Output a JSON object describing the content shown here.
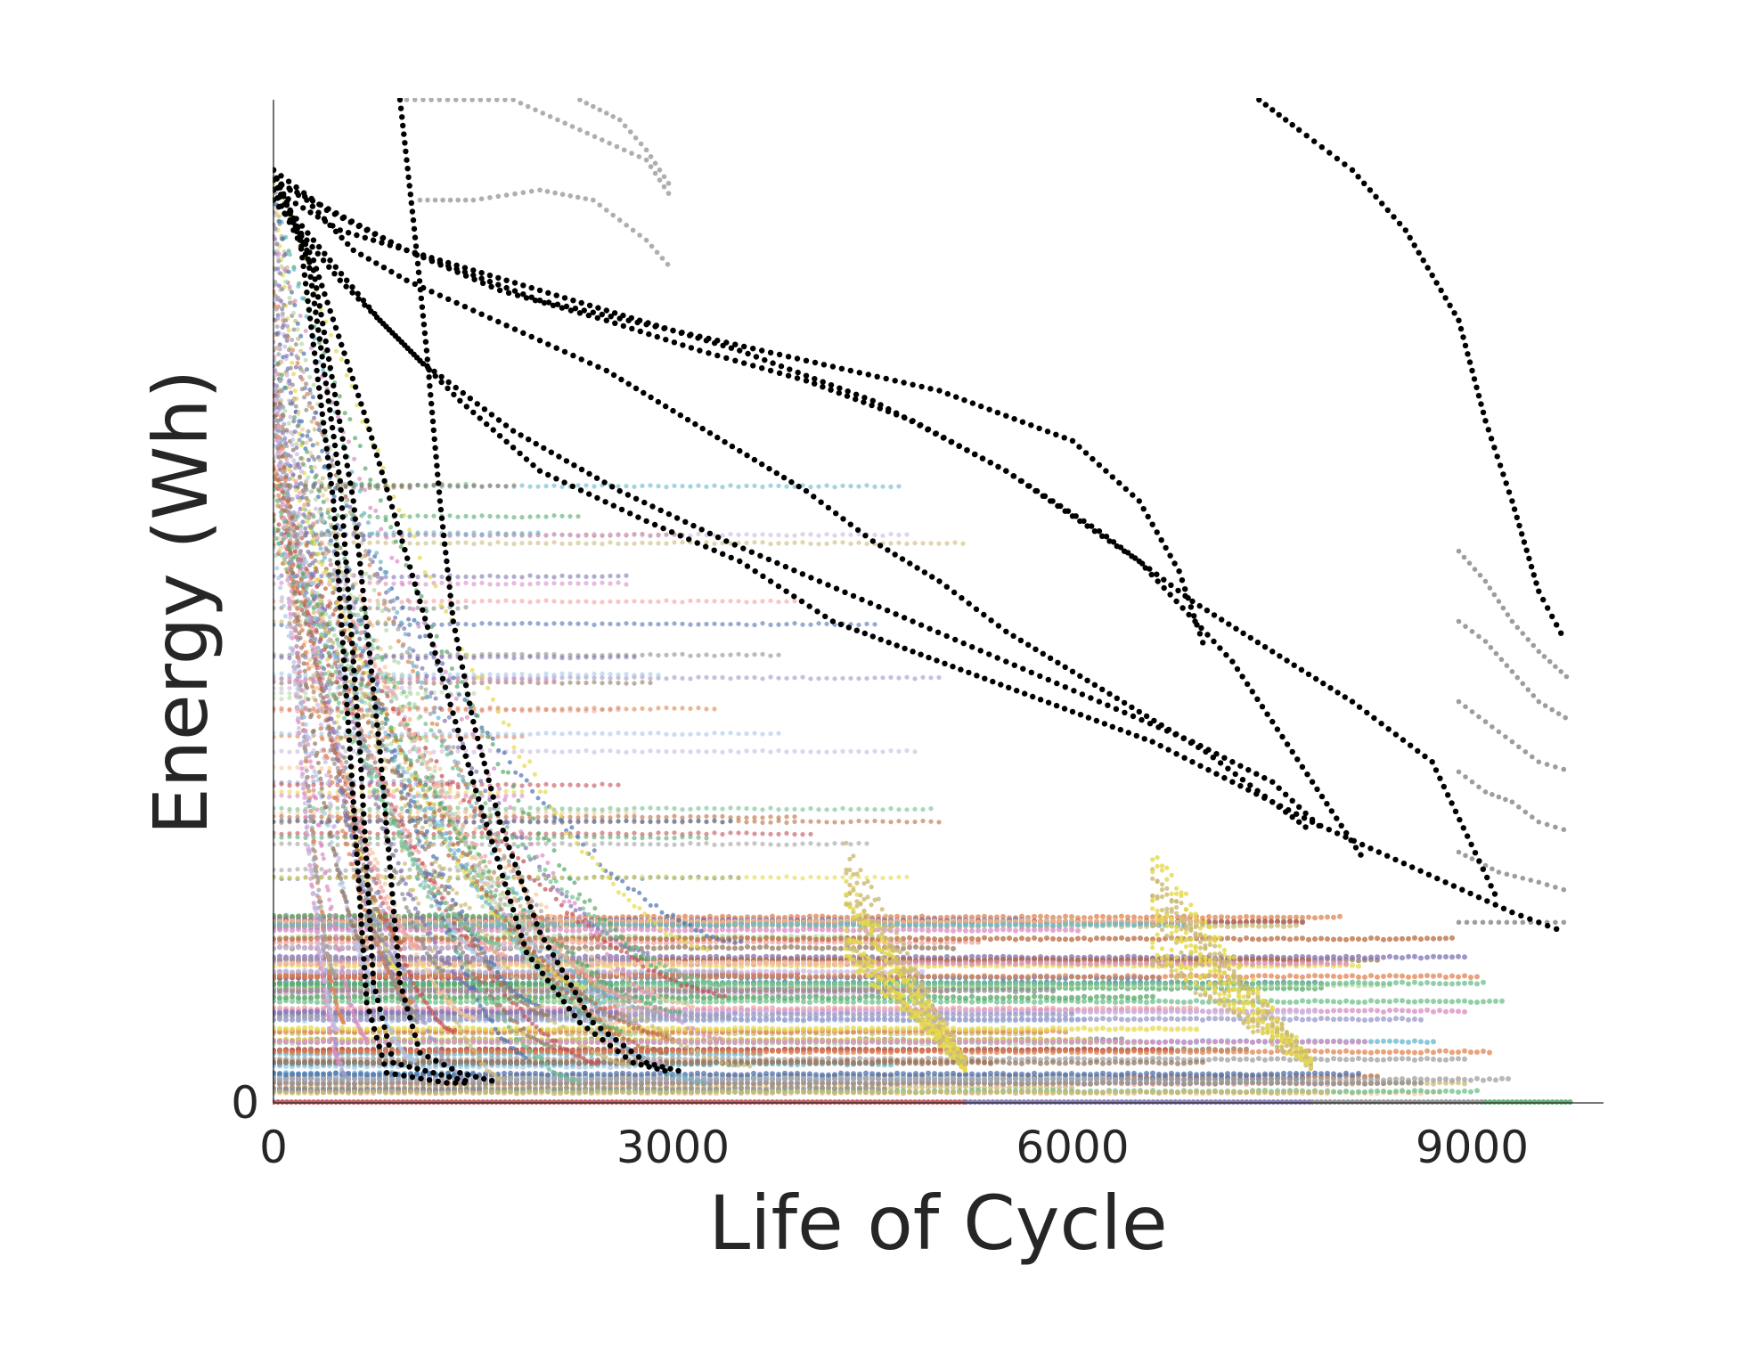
{
  "chart_data": {
    "type": "scatter",
    "title": "",
    "xlabel": "Life of Cycle",
    "ylabel": "Energy (Wh)",
    "xlim": [
      0,
      10000
    ],
    "ylim": [
      0,
      100
    ],
    "x_ticks": [
      0,
      3000,
      6000,
      9000
    ],
    "x_tick_labels": [
      "0",
      "3000",
      "6000",
      "9000"
    ],
    "y_ticks": [
      0
    ],
    "y_tick_labels": [
      "0"
    ],
    "grid": false,
    "legend": "none",
    "note": "",
    "palette": [
      "#c44e52",
      "#4c72b0",
      "#55a868",
      "#8172b2",
      "#ccb974",
      "#64b5cd",
      "#dd8452",
      "#937860",
      "#da8bc3",
      "#8c8c8c",
      "#e5d84a",
      "#f2a0a0",
      "#a6c8e8",
      "#b4d9a8",
      "#c9b8e0",
      "#f7c89a",
      "#9a9ac8",
      "#b86a3c",
      "#a0a0a0",
      "#6cbf8c"
    ],
    "series_black": [
      {
        "color": "#000000",
        "points": [
          [
            0,
            92
          ],
          [
            250,
            90
          ],
          [
            600,
            85
          ],
          [
            1000,
            82
          ],
          [
            1500,
            79
          ],
          [
            2000,
            76
          ],
          [
            2500,
            73
          ],
          [
            3000,
            69
          ],
          [
            3500,
            65
          ],
          [
            4000,
            61
          ],
          [
            4500,
            56
          ],
          [
            5000,
            52
          ],
          [
            5500,
            47
          ],
          [
            6000,
            43
          ],
          [
            6500,
            39
          ],
          [
            7000,
            35
          ],
          [
            7500,
            30
          ],
          [
            7800,
            27
          ]
        ]
      },
      {
        "color": "#000000",
        "points": [
          [
            0,
            93
          ],
          [
            400,
            89
          ],
          [
            1000,
            85
          ],
          [
            1700,
            81
          ],
          [
            2500,
            78
          ],
          [
            3200,
            75
          ],
          [
            4000,
            72
          ],
          [
            4800,
            68
          ],
          [
            5500,
            63
          ],
          [
            6200,
            57
          ],
          [
            6900,
            50
          ],
          [
            7500,
            45
          ],
          [
            8100,
            40
          ],
          [
            8700,
            34
          ],
          [
            9200,
            20
          ]
        ]
      },
      {
        "color": "#000000",
        "points": [
          [
            0,
            91
          ],
          [
            300,
            86
          ],
          [
            800,
            78
          ],
          [
            1400,
            70
          ],
          [
            2000,
            63
          ],
          [
            2800,
            58
          ],
          [
            3500,
            54
          ],
          [
            4200,
            48
          ],
          [
            4800,
            45
          ],
          [
            5400,
            42
          ],
          [
            6000,
            39
          ],
          [
            6600,
            36
          ],
          [
            7200,
            32
          ],
          [
            7800,
            28
          ],
          [
            8300,
            25
          ],
          [
            8800,
            22
          ],
          [
            9300,
            19
          ],
          [
            9700,
            17
          ]
        ]
      },
      {
        "color": "#000000",
        "points": [
          [
            0,
            90
          ],
          [
            500,
            82
          ],
          [
            1100,
            74
          ],
          [
            1800,
            67
          ],
          [
            2600,
            61
          ],
          [
            3400,
            56
          ],
          [
            4100,
            52
          ],
          [
            4800,
            48
          ],
          [
            5500,
            44
          ],
          [
            6200,
            40
          ],
          [
            6900,
            36
          ],
          [
            7500,
            32
          ],
          [
            7900,
            27
          ]
        ]
      },
      {
        "color": "#000000",
        "points": [
          [
            0,
            92
          ],
          [
            300,
            84
          ],
          [
            700,
            68
          ],
          [
            1100,
            50
          ],
          [
            1500,
            32
          ],
          [
            1900,
            15
          ],
          [
            2300,
            8
          ],
          [
            2700,
            4
          ],
          [
            3000,
            3
          ]
        ]
      },
      {
        "color": "#000000",
        "points": [
          [
            0,
            93
          ],
          [
            200,
            86
          ],
          [
            450,
            60
          ],
          [
            600,
            30
          ],
          [
            700,
            10
          ],
          [
            850,
            3
          ],
          [
            1300,
            2
          ],
          [
            1500,
            2
          ]
        ]
      },
      {
        "color": "#000000",
        "points": [
          [
            0,
            93
          ],
          [
            250,
            85
          ],
          [
            500,
            62
          ],
          [
            650,
            35
          ],
          [
            750,
            12
          ],
          [
            900,
            4
          ],
          [
            1200,
            3
          ],
          [
            1500,
            2
          ]
        ]
      },
      {
        "color": "#000000",
        "points": [
          [
            0,
            91
          ],
          [
            300,
            83
          ],
          [
            600,
            60
          ],
          [
            800,
            35
          ],
          [
            950,
            12
          ],
          [
            1100,
            5
          ],
          [
            1400,
            3
          ],
          [
            1700,
            2
          ]
        ]
      },
      {
        "color": "#000000",
        "points": [
          [
            950,
            100
          ],
          [
            1050,
            88
          ],
          [
            1150,
            75
          ],
          [
            1250,
            60
          ],
          [
            1350,
            48
          ],
          [
            1500,
            38
          ],
          [
            1700,
            28
          ],
          [
            2000,
            17
          ],
          [
            2400,
            8
          ],
          [
            2800,
            4
          ],
          [
            3100,
            3
          ]
        ]
      },
      {
        "color": "#000000",
        "points": [
          [
            0,
            92
          ],
          [
            1000,
            85
          ],
          [
            2000,
            80
          ],
          [
            3000,
            77
          ],
          [
            4000,
            74
          ],
          [
            5000,
            71
          ],
          [
            6000,
            66
          ],
          [
            6500,
            60
          ],
          [
            6800,
            53
          ],
          [
            7000,
            45
          ]
        ]
      },
      {
        "color": "#000000",
        "points": [
          [
            0,
            91
          ],
          [
            500,
            87
          ],
          [
            1500,
            83
          ],
          [
            2500,
            79
          ],
          [
            3500,
            75
          ],
          [
            4500,
            70
          ],
          [
            5500,
            63
          ],
          [
            6500,
            54
          ],
          [
            7200,
            44
          ],
          [
            7800,
            32
          ],
          [
            8200,
            24
          ]
        ]
      },
      {
        "color": "#000000",
        "points": [
          [
            7400,
            100
          ],
          [
            7700,
            97
          ],
          [
            8100,
            93
          ],
          [
            8500,
            87
          ],
          [
            8900,
            78
          ],
          [
            9100,
            68
          ],
          [
            9300,
            60
          ],
          [
            9500,
            51
          ],
          [
            9700,
            46
          ]
        ]
      }
    ],
    "series_grey": [
      {
        "color": "#a0a0a0",
        "points": [
          [
            1100,
            90
          ],
          [
            1500,
            90
          ],
          [
            2000,
            91
          ],
          [
            2400,
            90
          ],
          [
            2800,
            86
          ],
          [
            3000,
            83
          ]
        ]
      },
      {
        "color": "#a0a0a0",
        "points": [
          [
            1000,
            100
          ],
          [
            1800,
            100
          ],
          [
            2300,
            97
          ],
          [
            2800,
            94
          ],
          [
            3000,
            90
          ]
        ]
      },
      {
        "color": "#a0a0a0",
        "points": [
          [
            2300,
            100
          ],
          [
            2600,
            98
          ],
          [
            2800,
            95
          ],
          [
            3000,
            91
          ]
        ]
      },
      {
        "color": "#8c8c8c",
        "points": [
          [
            8900,
            55
          ],
          [
            9100,
            52
          ],
          [
            9300,
            48
          ],
          [
            9500,
            45
          ],
          [
            9750,
            42
          ]
        ]
      },
      {
        "color": "#8c8c8c",
        "points": [
          [
            8900,
            48
          ],
          [
            9100,
            46
          ],
          [
            9300,
            43
          ],
          [
            9500,
            40
          ],
          [
            9750,
            38
          ]
        ]
      },
      {
        "color": "#8c8c8c",
        "points": [
          [
            8900,
            40
          ],
          [
            9100,
            38
          ],
          [
            9300,
            36
          ],
          [
            9500,
            34
          ],
          [
            9750,
            33
          ]
        ]
      },
      {
        "color": "#8c8c8c",
        "points": [
          [
            8900,
            33
          ],
          [
            9100,
            31
          ],
          [
            9300,
            30
          ],
          [
            9500,
            28
          ],
          [
            9750,
            27
          ]
        ]
      },
      {
        "color": "#8c8c8c",
        "points": [
          [
            8900,
            25
          ],
          [
            9200,
            23
          ],
          [
            9500,
            22
          ],
          [
            9750,
            21
          ]
        ]
      },
      {
        "color": "#8c8c8c",
        "points": [
          [
            8900,
            18
          ],
          [
            9200,
            18
          ],
          [
            9500,
            18
          ],
          [
            9750,
            18
          ]
        ]
      }
    ]
  }
}
